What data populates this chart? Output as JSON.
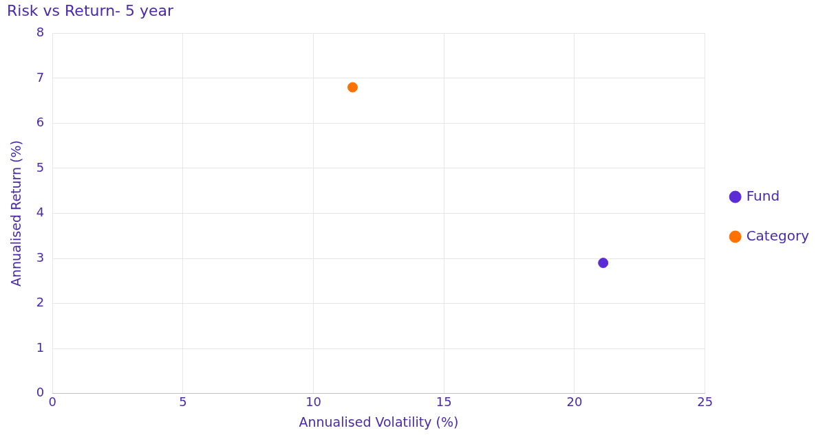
{
  "chart_data": {
    "type": "scatter",
    "title": "Risk vs Return- 5 year",
    "xlabel": "Annualised Volatility (%)",
    "ylabel": "Annualised Return (%)",
    "series": [
      {
        "name": "Fund",
        "color": "#5b2bd6",
        "x": [
          21.1
        ],
        "values": [
          2.9
        ]
      },
      {
        "name": "Category",
        "color": "#ff7200",
        "x": [
          11.5
        ],
        "values": [
          6.8
        ]
      }
    ],
    "xlim": [
      0,
      25
    ],
    "xticks": [
      0,
      5,
      10,
      15,
      20,
      25
    ],
    "ylim": [
      0,
      8
    ],
    "yticks": [
      0,
      1,
      2,
      3,
      4,
      5,
      6,
      7,
      8
    ],
    "grid": true,
    "legend": "right",
    "marker": "circle"
  }
}
